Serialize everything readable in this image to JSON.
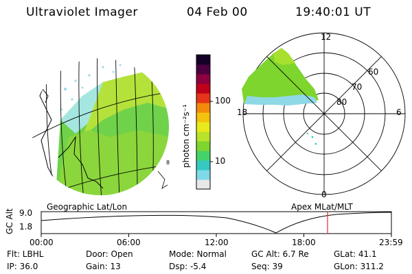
{
  "header": {
    "title": "Ultraviolet Imager",
    "date": "04 Feb 00",
    "time": "19:40:01 UT"
  },
  "colorbar": {
    "unit_label": "photon cm⁻²s⁻¹",
    "ticks": [
      "100",
      "10"
    ],
    "colors": [
      "#e8e8e8",
      "#7ed9e8",
      "#35c9c2",
      "#44d36a",
      "#7ed52d",
      "#b9e22a",
      "#e9ea1c",
      "#f5c20e",
      "#f28a0c",
      "#e5351a",
      "#c0001a",
      "#8c0040",
      "#4b0040",
      "#150028"
    ]
  },
  "polar": {
    "hour_labels": {
      "top": "12",
      "left": "18",
      "right": "6",
      "bottom": "0"
    },
    "lat_labels": [
      "60",
      "70",
      "80"
    ]
  },
  "timeline": {
    "left_label": "Geographic Lat/Lon",
    "right_label": "Apex MLat/MLT",
    "y_axis_label": "GC Alt",
    "y_ticks": [
      "9.0",
      "1.8"
    ],
    "x_ticks": [
      "00:00",
      "06:00",
      "12:00",
      "18:00",
      "23:59"
    ],
    "marker_color": "#e03030"
  },
  "status": {
    "row1": [
      "Flt: LBHL",
      "Door: Open",
      "Mode: Normal",
      "GC Alt: 6.7 Re",
      "GLat:  41.1"
    ],
    "row2": [
      "IP: 36.0",
      "Gain: 13",
      "Dsp:    -5.4",
      "Seq: 39",
      "GLon: 311.2"
    ]
  }
}
